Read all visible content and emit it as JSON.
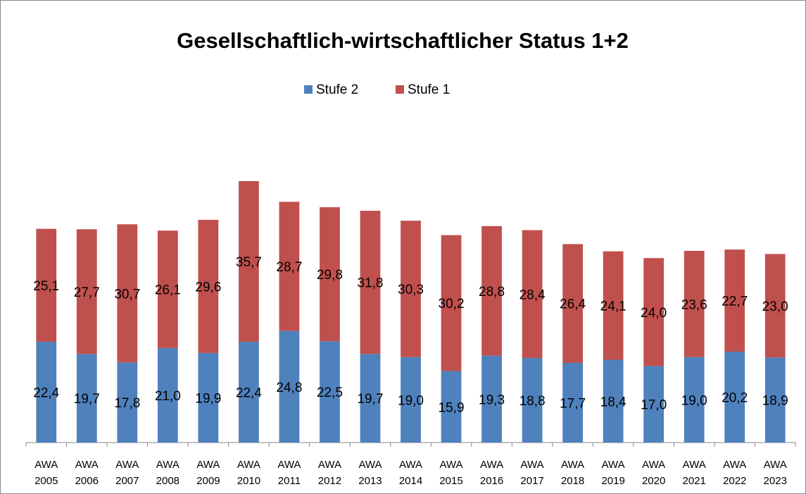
{
  "chart_data": {
    "type": "stacked_bar",
    "title": "Gesellschaftlich-wirtschaftlicher Status 1+2",
    "categories": [
      "AWA 2005",
      "AWA 2006",
      "AWA 2007",
      "AWA 2008",
      "AWA 2009",
      "AWA 2010",
      "AWA 2011",
      "AWA 2012",
      "AWA 2013",
      "AWA 2014",
      "AWA 2015",
      "AWA 2016",
      "AWA 2017",
      "AWA 2018",
      "AWA 2019",
      "AWA 2020",
      "AWA 2021",
      "AWA 2022",
      "AWA 2023"
    ],
    "series": [
      {
        "name": "Stufe 2",
        "color": "#4f81bd",
        "values": [
          22.4,
          19.7,
          17.8,
          21.0,
          19.9,
          22.4,
          24.8,
          22.5,
          19.7,
          19.0,
          15.9,
          19.3,
          18.8,
          17.7,
          18.4,
          17.0,
          19.0,
          20.2,
          18.9
        ],
        "value_labels": [
          "22,4",
          "19,7",
          "17,8",
          "21,0",
          "19,9",
          "22,4",
          "24,8",
          "22,5",
          "19,7",
          "19,0",
          "15,9",
          "19,3",
          "18,8",
          "17,7",
          "18,4",
          "17,0",
          "19,0",
          "20,2",
          "18,9"
        ]
      },
      {
        "name": "Stufe 1",
        "color": "#c0504d",
        "values": [
          25.1,
          27.7,
          30.7,
          26.1,
          29.6,
          35.7,
          28.7,
          29.8,
          31.8,
          30.3,
          30.2,
          28.8,
          28.4,
          26.4,
          24.1,
          24.0,
          23.6,
          22.7,
          23.0
        ],
        "value_labels": [
          "25,1",
          "27,7",
          "30,7",
          "26,1",
          "29,6",
          "35,7",
          "28,7",
          "29,8",
          "31,8",
          "30,3",
          "30,2",
          "28,8",
          "28,4",
          "26,4",
          "24,1",
          "24,0",
          "23,6",
          "22,7",
          "23,0"
        ]
      }
    ],
    "legend": "top"
  }
}
